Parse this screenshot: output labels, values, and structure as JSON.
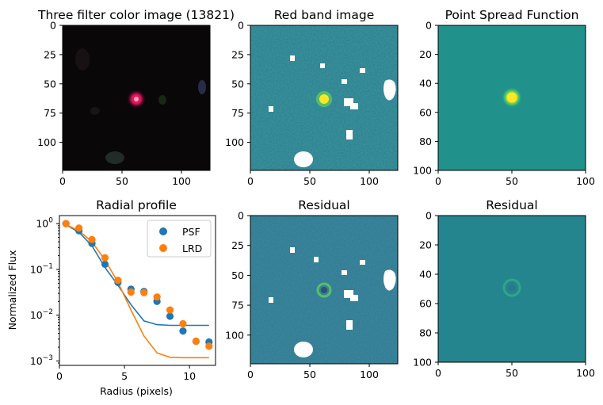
{
  "chart_data": [
    {
      "type": "heatmap",
      "title": "Three filter color image (13821)",
      "image": "rgb",
      "xticks": [
        "0",
        "50",
        "100"
      ],
      "yticks": [
        "0",
        "25",
        "50",
        "75",
        "100"
      ],
      "xlim": [
        0,
        124
      ],
      "ylim": [
        124,
        0
      ]
    },
    {
      "type": "heatmap",
      "title": "Red band image",
      "image": "viridis",
      "xticks": [
        "0",
        "50",
        "100"
      ],
      "yticks": [
        "0",
        "25",
        "50",
        "75",
        "100"
      ],
      "xlim": [
        0,
        124
      ],
      "ylim": [
        124,
        0
      ]
    },
    {
      "type": "heatmap",
      "title": "Point Spread Function",
      "image": "viridis",
      "xticks": [
        "0",
        "50",
        "100"
      ],
      "yticks": [
        "0",
        "20",
        "40",
        "60",
        "80",
        "100"
      ],
      "xlim": [
        0,
        100
      ],
      "ylim": [
        100,
        0
      ]
    },
    {
      "type": "scatter",
      "title": "Radial profile",
      "xlabel": "Radius (pixels)",
      "ylabel": "Normalized Flux",
      "yscale": "log",
      "xlim": [
        0,
        12
      ],
      "ylim": [
        0.0008,
        1.5
      ],
      "xticks": [
        "0",
        "5",
        "10"
      ],
      "yticks": [
        "10",
        "10",
        "10",
        "10"
      ],
      "ytick_exponents": [
        "0",
        "−1",
        "−2",
        "−3"
      ],
      "legend": "top-right",
      "series": [
        {
          "name": "PSF",
          "color": "#1f77b4",
          "points": {
            "x": [
              0.5,
              1.5,
              2.5,
              3.5,
              4.5,
              5.5,
              6.5,
              7.5,
              8.5,
              9.5,
              10.5,
              11.5
            ],
            "y": [
              1.0,
              0.7,
              0.37,
              0.13,
              0.052,
              0.037,
              0.033,
              0.02,
              0.0095,
              0.0045,
              0.0027,
              0.0026
            ]
          },
          "line": {
            "x": [
              0.5,
              1.5,
              2.5,
              3.5,
              4.5,
              5.5,
              6.5,
              7.5,
              8.5,
              9.5,
              10.5,
              11.5
            ],
            "y": [
              0.95,
              0.65,
              0.33,
              0.11,
              0.045,
              0.017,
              0.0075,
              0.0062,
              0.006,
              0.006,
              0.006,
              0.006
            ]
          }
        },
        {
          "name": "LRD",
          "color": "#ff7f0e",
          "points": {
            "x": [
              0.5,
              1.5,
              2.5,
              3.5,
              4.5,
              5.5,
              6.5,
              7.5,
              8.5,
              9.5,
              10.5,
              11.5
            ],
            "y": [
              1.0,
              0.8,
              0.45,
              0.18,
              0.058,
              0.032,
              0.031,
              0.025,
              0.013,
              0.0065,
              0.0027,
              0.0021
            ]
          },
          "line": {
            "x": [
              0.5,
              1.5,
              2.5,
              3.5,
              4.5,
              5.5,
              6.5,
              7.5,
              8.5,
              9.5,
              10.5,
              11.5
            ],
            "y": [
              0.95,
              0.7,
              0.4,
              0.16,
              0.052,
              0.013,
              0.0035,
              0.0015,
              0.0012,
              0.00118,
              0.00118,
              0.00118
            ]
          }
        }
      ]
    },
    {
      "type": "heatmap",
      "title": "Residual",
      "image": "viridis",
      "xticks": [
        "0",
        "50",
        "100"
      ],
      "yticks": [
        "0",
        "25",
        "50",
        "75",
        "100"
      ],
      "xlim": [
        0,
        124
      ],
      "ylim": [
        124,
        0
      ]
    },
    {
      "type": "heatmap",
      "title": "Residual",
      "image": "viridis",
      "xticks": [
        "0",
        "50",
        "100"
      ],
      "yticks": [
        "0",
        "20",
        "40",
        "60",
        "80",
        "100"
      ],
      "xlim": [
        0,
        100
      ],
      "ylim": [
        100,
        0
      ]
    }
  ]
}
